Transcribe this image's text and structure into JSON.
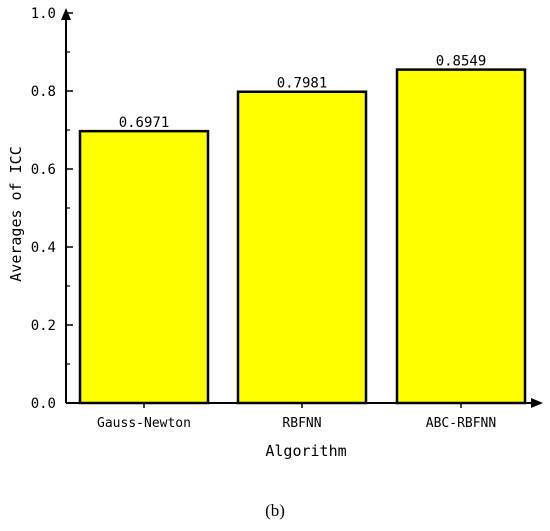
{
  "chart_data": {
    "type": "bar",
    "categories": [
      "Gauss-Newton",
      "RBFNN",
      "ABC-RBFNN"
    ],
    "values": [
      0.6971,
      0.7981,
      0.8549
    ],
    "data_labels": [
      "0.6971",
      "0.7981",
      "0.8549"
    ],
    "xlabel": "Algorithm",
    "ylabel": "Averages of ICC",
    "ylim": [
      0,
      1.0
    ],
    "yticks": [
      0.0,
      0.2,
      0.4,
      0.6,
      0.8,
      1.0
    ],
    "ytick_labels": [
      "0.0",
      "0.2",
      "0.4",
      "0.6",
      "0.8",
      "1.0"
    ],
    "bar_color": "#ffff00",
    "bar_edge_color": "#000000",
    "grid": false,
    "legend": "none"
  },
  "panel_label": "(b)"
}
